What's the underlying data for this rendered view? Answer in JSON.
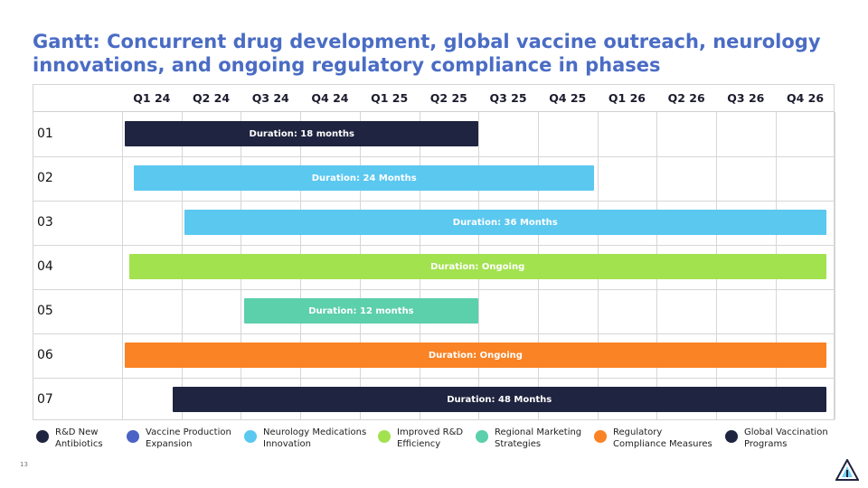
{
  "slide": {
    "title": "Gantt: Concurrent drug development, global vaccine outreach, neurology innovations, and ongoing regulatory compliance in phases",
    "page_number": "13",
    "logo_icon": "triangle-logo-icon"
  },
  "gantt": {
    "quarters": [
      "Q1 24",
      "Q2 24",
      "Q3 24",
      "Q4 24",
      "Q1 25",
      "Q2 25",
      "Q3 25",
      "Q4 25",
      "Q1 26",
      "Q2 26",
      "Q3 26",
      "Q4 26"
    ],
    "rows": [
      {
        "label": "01",
        "bar_text": "Duration: 18 months",
        "start": 0.05,
        "end": 6.0,
        "color": "#1f2440"
      },
      {
        "label": "02",
        "bar_text": "Duration: 24 Months",
        "start": 0.2,
        "end": 7.95,
        "color": "#5bc8f0"
      },
      {
        "label": "03",
        "bar_text": "Duration: 36 Months",
        "start": 1.05,
        "end": 11.85,
        "color": "#5bc8f0"
      },
      {
        "label": "04",
        "bar_text": "Duration: Ongoing",
        "start": 0.12,
        "end": 11.85,
        "color": "#a3e24f"
      },
      {
        "label": "05",
        "bar_text": "Duration: 12 months",
        "start": 2.05,
        "end": 6.0,
        "color": "#5ccfab"
      },
      {
        "label": "06",
        "bar_text": "Duration: Ongoing",
        "start": 0.05,
        "end": 11.85,
        "color": "#f98325"
      },
      {
        "label": "07",
        "bar_text": "Duration: 48 Months",
        "start": 0.85,
        "end": 11.85,
        "color": "#1f2440"
      }
    ]
  },
  "legend": [
    {
      "label": "R&D New\nAntibiotics",
      "color": "#1f2440"
    },
    {
      "label": "Vaccine Production\nExpansion",
      "color": "#4a63c4"
    },
    {
      "label": "Neurology Medications\nInnovation",
      "color": "#5bc8f0"
    },
    {
      "label": "Improved R&D\nEfficiency",
      "color": "#a3e24f"
    },
    {
      "label": "Regional Marketing\nStrategies",
      "color": "#5ccfab"
    },
    {
      "label": "Regulatory\nCompliance Measures",
      "color": "#f98325"
    },
    {
      "label": "Global Vaccination\nPrograms",
      "color": "#1f2440"
    }
  ]
}
